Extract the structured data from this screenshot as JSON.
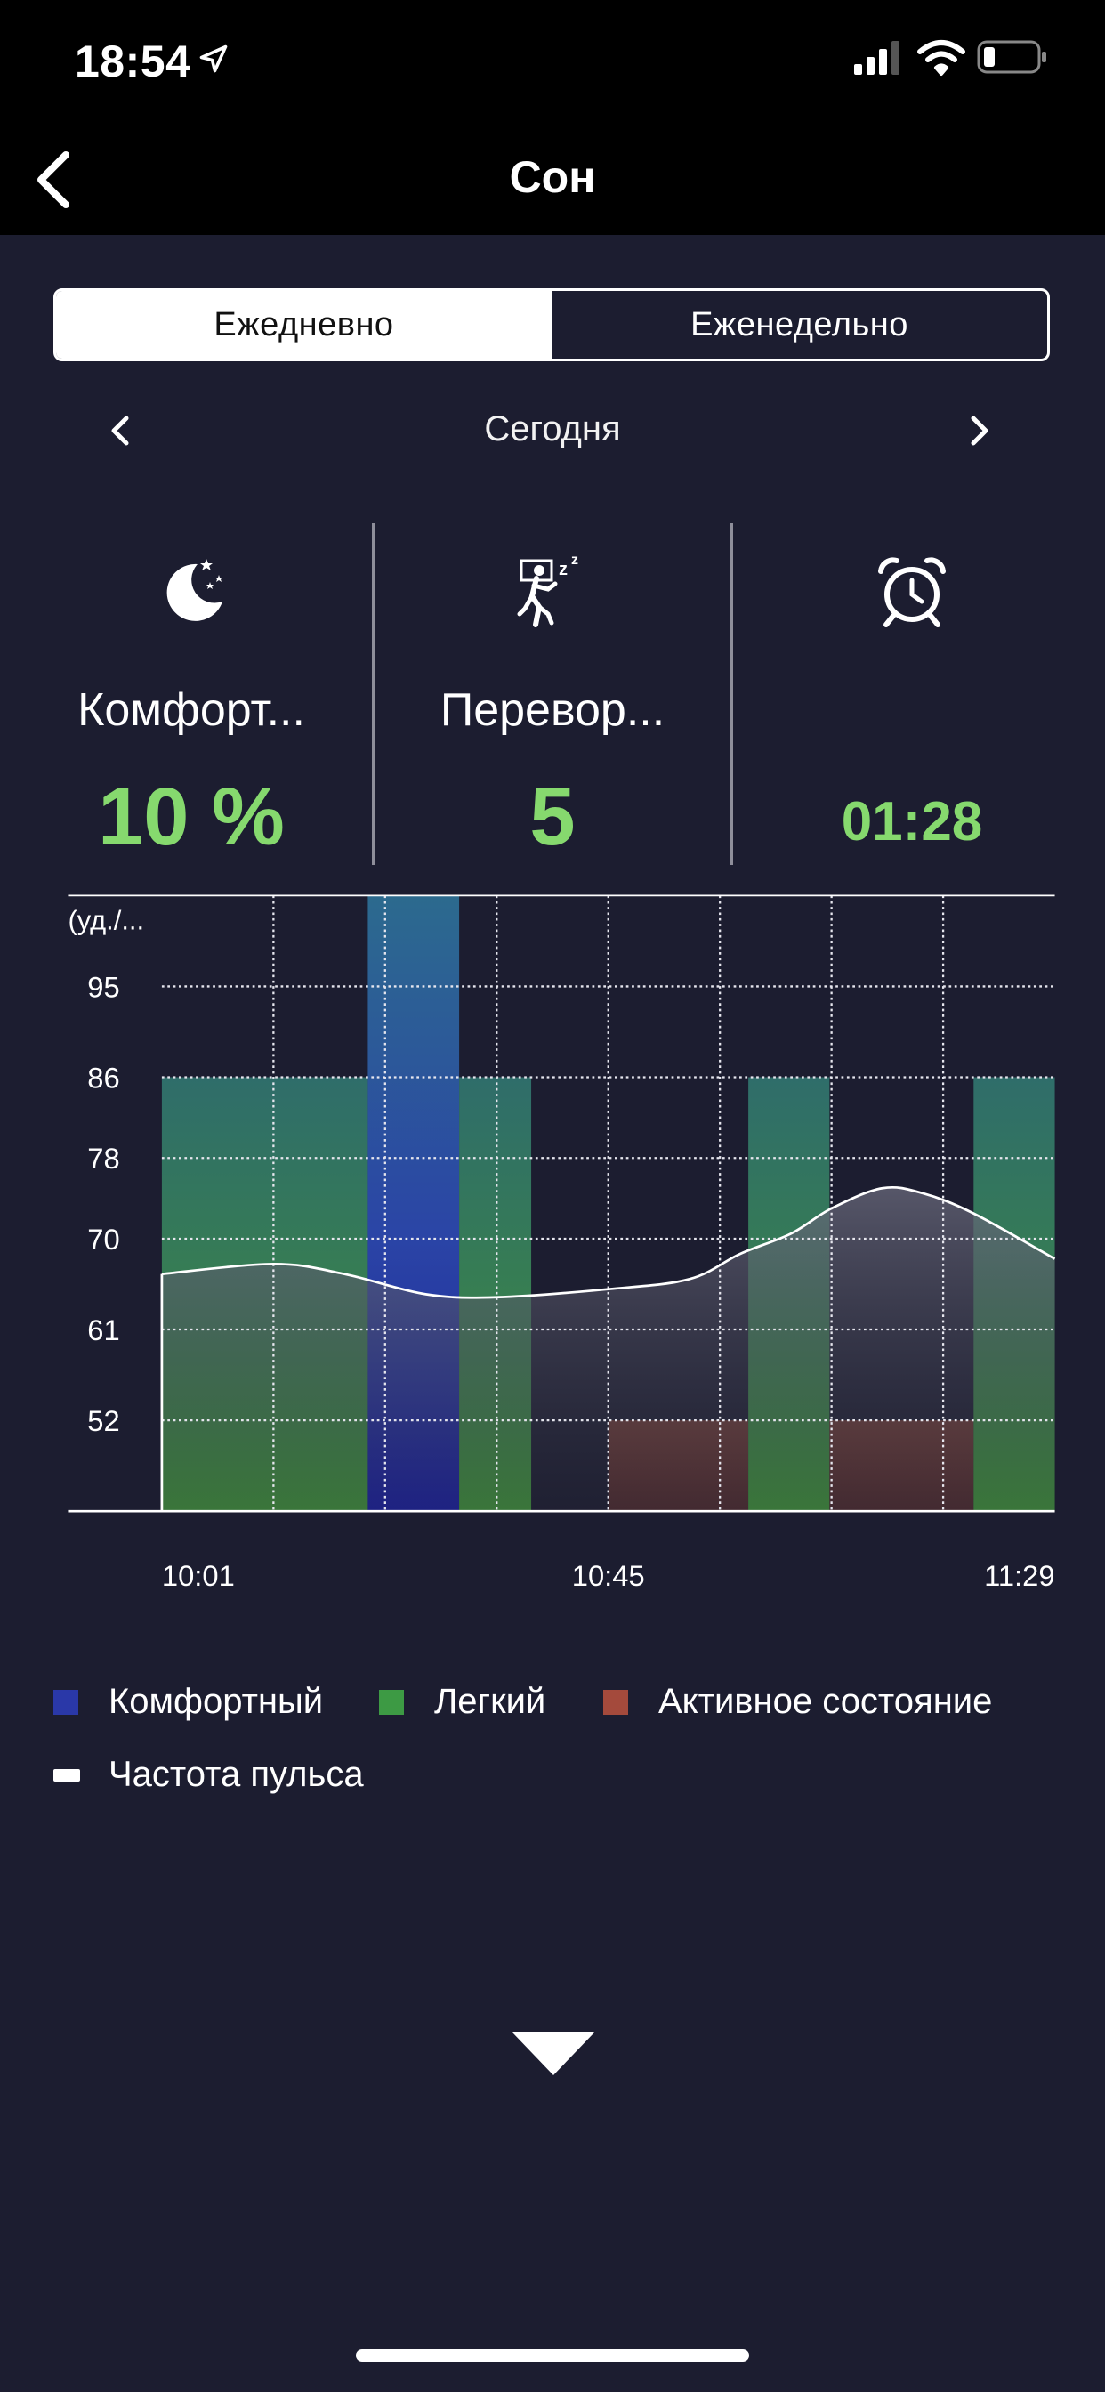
{
  "status_bar": {
    "time": "18:54",
    "icons": [
      "location-arrow-icon",
      "signal-icon",
      "wifi-icon",
      "battery-icon"
    ]
  },
  "nav": {
    "title": "Сон",
    "back_icon": "chevron-left-icon"
  },
  "tabs": [
    {
      "label": "Ежедневно",
      "active": true
    },
    {
      "label": "Еженедельно",
      "active": false
    }
  ],
  "date_nav": {
    "label": "Сегодня",
    "prev_icon": "chevron-left-icon",
    "next_icon": "chevron-right-icon"
  },
  "stats": [
    {
      "icon": "moon-stars-icon",
      "label": "Комфорт...",
      "value": "10 %"
    },
    {
      "icon": "turning-over-icon",
      "label": "Перевор...",
      "value": "5"
    },
    {
      "icon": "alarm-clock-icon",
      "label": "",
      "value": "01:28"
    }
  ],
  "colors": {
    "accent_value": "#86d96e",
    "comfortable": "#2a38a8",
    "light": "#3d9a44",
    "active": "#a44a3c",
    "heart_rate": "#ffffff"
  },
  "chart_data": {
    "type": "area",
    "ylabel": "(уд./...",
    "yticks": [
      52,
      61,
      70,
      78,
      86,
      95
    ],
    "xtick_labels": [
      "10:01",
      "10:45",
      "11:29"
    ],
    "xlim": [
      0,
      88
    ],
    "ylim": [
      43,
      104
    ],
    "grid": true,
    "sleep_stages": [
      {
        "stage": "light",
        "start": 0,
        "end": 20.3,
        "level": 86
      },
      {
        "stage": "comfortable",
        "start": 20.3,
        "end": 29.3,
        "level": 104
      },
      {
        "stage": "light",
        "start": 29.3,
        "end": 36.4,
        "level": 86
      },
      {
        "stage": "active",
        "start": 44,
        "end": 57.8,
        "level": 52
      },
      {
        "stage": "light",
        "start": 57.8,
        "end": 65.8,
        "level": 86
      },
      {
        "stage": "active",
        "start": 65.8,
        "end": 80,
        "level": 52
      },
      {
        "stage": "light",
        "start": 80,
        "end": 88,
        "level": 86
      }
    ],
    "series": [
      {
        "name": "Частота пульса",
        "x": [
          0,
          11,
          18,
          26,
          33,
          44,
          52,
          57,
          62,
          66,
          71,
          75,
          80,
          88
        ],
        "values": [
          66.5,
          67.5,
          66.5,
          64.5,
          64.2,
          65,
          66,
          68.5,
          70.5,
          73,
          75,
          74.5,
          72.5,
          68
        ]
      }
    ]
  },
  "legend": {
    "items": [
      {
        "label": "Комфортный",
        "color": "#2a38a8"
      },
      {
        "label": "Легкий",
        "color": "#3d9a44"
      },
      {
        "label": "Активное состояние",
        "color": "#a44a3c"
      },
      {
        "label": "Частота пульса",
        "color": "#ffffff"
      }
    ]
  },
  "expand_icon": "chevron-down-icon"
}
